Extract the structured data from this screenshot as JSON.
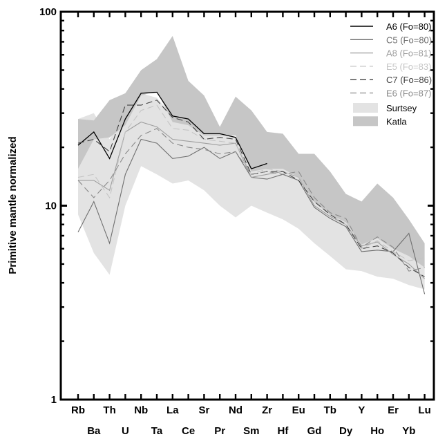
{
  "chart_data": {
    "type": "line",
    "ylabel": "Primitive mantle normalized",
    "yscale": "log",
    "ylim": [
      1,
      100
    ],
    "y_ticks": [
      "1",
      "10",
      "100"
    ],
    "categories": [
      "Rb",
      "Ba",
      "Th",
      "U",
      "Nb",
      "Ta",
      "La",
      "Ce",
      "Sr",
      "Pr",
      "Nd",
      "Sm",
      "Zr",
      "Hf",
      "Eu",
      "Gd",
      "Tb",
      "Dy",
      "Y",
      "Ho",
      "Er",
      "Yb",
      "Lu"
    ],
    "legend_position": "top-right",
    "series": [
      {
        "name": "A6 (Fo=80)",
        "color": "#000000",
        "dash": "solid",
        "width": 1.3,
        "values": [
          20.5,
          24,
          17.5,
          28,
          38,
          38.5,
          29,
          28,
          23.5,
          23.5,
          22.5,
          15.5,
          16.5,
          null,
          null,
          null,
          null,
          null,
          null,
          null,
          null,
          null,
          null
        ]
      },
      {
        "name": "C5 (Fo=80)",
        "color": "#6e6e6e",
        "dash": "solid",
        "width": 1.1,
        "values": [
          7.3,
          10.5,
          6.4,
          14.5,
          22,
          21,
          17.5,
          18,
          20,
          17.5,
          19,
          14,
          13.7,
          14.5,
          13.5,
          9.8,
          8.6,
          7.8,
          5.8,
          5.9,
          5.8,
          7.2,
          3.5
        ]
      },
      {
        "name": "A8 (Fo=81)",
        "color": "#9e9e9e",
        "dash": "solid",
        "width": 1.1,
        "values": [
          13.5,
          13.5,
          12,
          24,
          27,
          25.5,
          22,
          21.5,
          21,
          20.5,
          21,
          14,
          14.5,
          15,
          14,
          10,
          8.8,
          8,
          6.2,
          6.5,
          5.6,
          5,
          4.2
        ]
      },
      {
        "name": "E5 (Fo=83)",
        "color": "#c4c4c4",
        "dash": "dash",
        "width": 1.1,
        "values": [
          14,
          14.5,
          11,
          24,
          31,
          33,
          25,
          24.5,
          22,
          21.5,
          21,
          14.5,
          15.5,
          15,
          14,
          10.5,
          9,
          8,
          6,
          6.6,
          5.8,
          5.2,
          5.4
        ]
      },
      {
        "name": "C7 (Fo=86)",
        "color": "#404040",
        "dash": "dash",
        "width": 1.1,
        "values": [
          21,
          22,
          19,
          33,
          33,
          35,
          28.5,
          27,
          22,
          22.5,
          22,
          14.5,
          15,
          15,
          13.5,
          10.5,
          9,
          8,
          6,
          6.2,
          5.7,
          4.8,
          4.3
        ]
      },
      {
        "name": "E6 (Fo=87)",
        "color": "#8a8a8a",
        "dash": "dash",
        "width": 1.1,
        "values": [
          13.5,
          11,
          13.5,
          18.5,
          23,
          25,
          21,
          20,
          19.5,
          18.5,
          19,
          14.5,
          15,
          14.5,
          15,
          11,
          9.2,
          8.6,
          6.1,
          6.9,
          6.1,
          4.6,
          4.8
        ]
      }
    ],
    "bands": [
      {
        "name": "Surtsey",
        "color": "#e3e3e3",
        "upper": [
          null,
          null,
          null,
          null,
          null,
          null,
          null,
          null,
          null,
          null,
          null,
          null,
          null,
          null,
          null,
          null,
          null,
          null,
          null,
          null,
          null,
          null,
          null
        ],
        "lower": [
          9,
          5.7,
          4.4,
          10,
          16,
          14.5,
          13,
          13.5,
          12,
          10,
          8.7,
          10,
          9.2,
          8.5,
          7.6,
          6.4,
          5.5,
          4.7,
          4.6,
          4.3,
          4.2,
          3.9,
          3.7
        ]
      },
      {
        "name": "Katla",
        "color": "#c6c6c6",
        "upper": [
          28,
          27.5,
          35,
          38,
          50,
          57,
          75,
          44,
          37,
          25.5,
          36.5,
          31,
          24,
          23.5,
          18.5,
          18.5,
          15,
          11.5,
          10.5,
          13,
          11,
          8.5,
          6.4
        ],
        "lower": [
          15.5,
          22,
          22.5,
          26,
          37,
          39,
          27,
          26,
          23,
          23,
          23,
          15,
          15.5,
          15.5,
          14,
          10.5,
          9,
          8.2,
          6.3,
          6.8,
          6,
          5.5,
          4.8
        ]
      }
    ],
    "surtsey_upper": [
      28,
      30,
      22,
      30,
      38,
      36,
      29,
      28,
      23.5,
      23.5,
      22.5,
      15.5,
      16.5,
      15.5,
      14.5,
      11,
      9.3,
      8.5,
      6.3,
      7,
      6.2,
      5.8,
      5.4
    ]
  }
}
